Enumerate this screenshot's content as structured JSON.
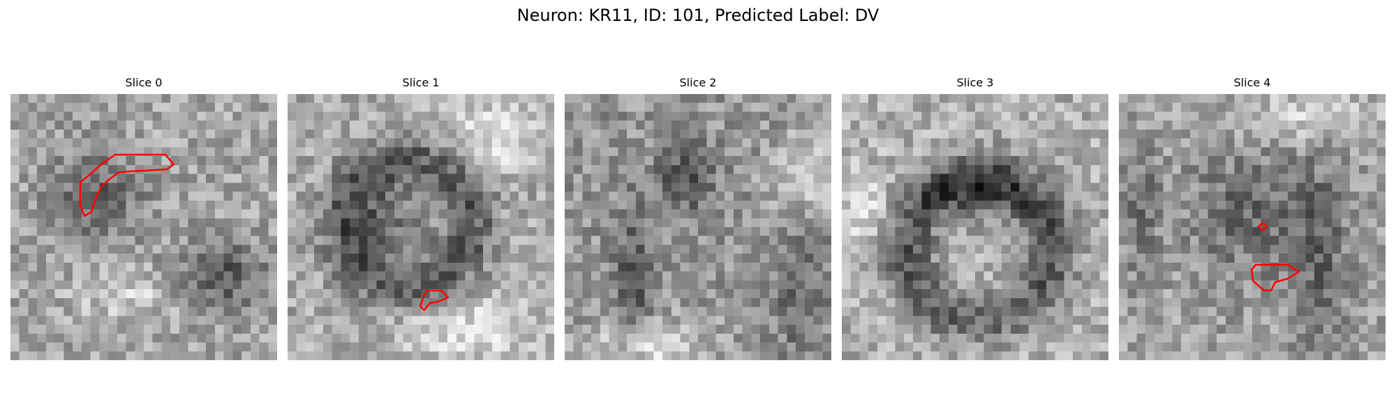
{
  "figure": {
    "title": "Neuron: KR11, ID: 101, Predicted Label: DV"
  },
  "panels": [
    {
      "title": "Slice 0"
    },
    {
      "title": "Slice 1"
    },
    {
      "title": "Slice 2"
    },
    {
      "title": "Slice 3"
    },
    {
      "title": "Slice 4"
    }
  ],
  "style": {
    "colormap": "gray",
    "contour_color": "#ff0000",
    "background": "#ffffff"
  }
}
